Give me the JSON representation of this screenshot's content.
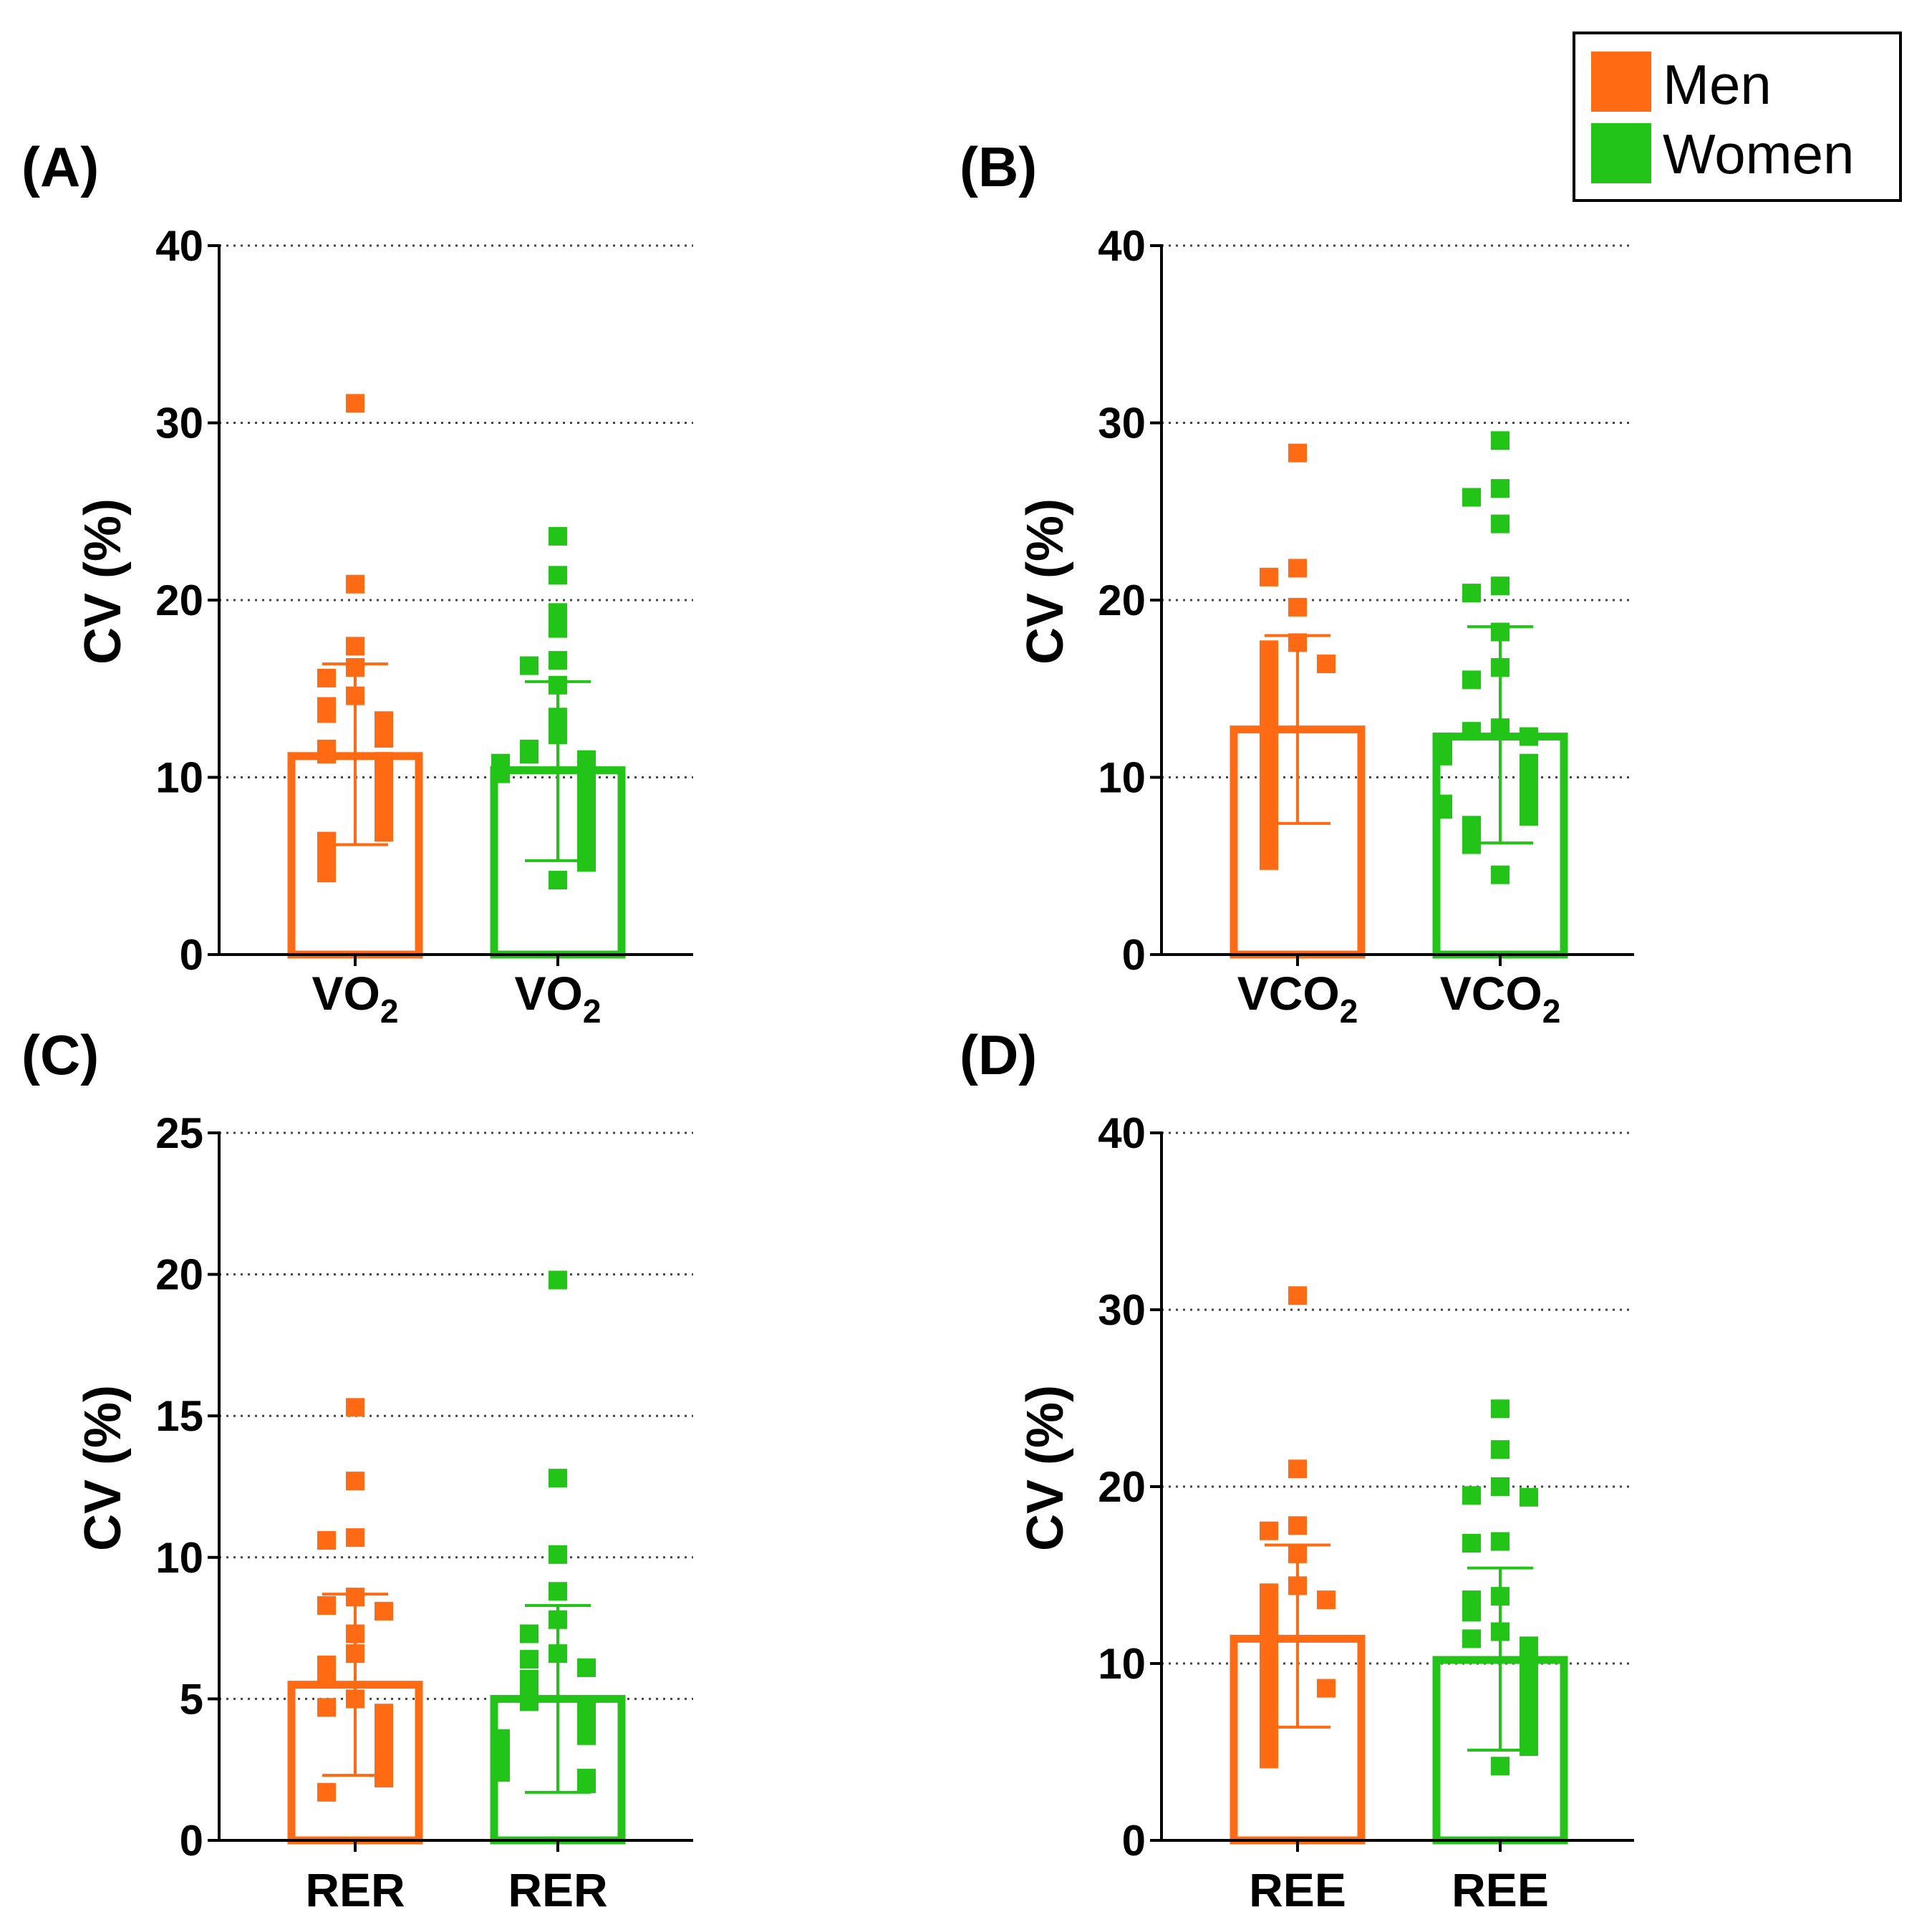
{
  "legend": {
    "items": [
      {
        "label": "Men",
        "color": "#FF6A13"
      },
      {
        "label": "Women",
        "color": "#22C417"
      }
    ]
  },
  "colors": {
    "men": "#FF6A13",
    "women": "#22C417",
    "axis": "#000000",
    "grid": "#444444"
  },
  "chart_data": [
    {
      "type": "bar",
      "panel_label": "(A)",
      "ylabel": "CV (%)",
      "ylim": [
        0,
        40
      ],
      "yticks": [
        "0",
        "10",
        "20",
        "30",
        "40"
      ],
      "ytick_values": [
        0,
        10,
        20,
        30,
        40
      ],
      "grid": "dotted horizontal",
      "categories": [
        {
          "base": "VO",
          "sub": "2",
          "series": "Men"
        },
        {
          "base": "VO",
          "sub": "2",
          "series": "Women"
        }
      ],
      "series": [
        {
          "name": "Men",
          "mean": 11.2,
          "sd_low": 6.2,
          "sd_high": 16.4,
          "points": [
            31.1,
            20.9,
            17.4,
            16.2,
            15.6,
            14.6,
            14.0,
            13.6,
            13.2,
            12.9,
            12.6,
            12.2,
            11.6,
            11.3,
            10.9,
            10.6,
            10.3,
            9.9,
            9.6,
            9.3,
            8.9,
            8.5,
            8.1,
            7.7,
            7.3,
            6.9,
            6.4,
            5.8,
            5.2,
            4.6
          ]
        },
        {
          "name": "Women",
          "mean": 10.4,
          "sd_low": 5.3,
          "sd_high": 15.4,
          "points": [
            23.6,
            21.4,
            19.3,
            18.4,
            16.6,
            16.3,
            15.2,
            13.4,
            12.4,
            11.6,
            11.3,
            11.0,
            10.8,
            10.5,
            10.2,
            9.9,
            9.6,
            9.3,
            9.0,
            8.7,
            8.4,
            8.1,
            7.8,
            7.5,
            7.2,
            6.8,
            6.4,
            6.0,
            5.7,
            5.2,
            4.2
          ]
        }
      ]
    },
    {
      "type": "bar",
      "panel_label": "(B)",
      "ylabel": "CV (%)",
      "ylim": [
        0,
        40
      ],
      "yticks": [
        "0",
        "10",
        "20",
        "30",
        "40"
      ],
      "ytick_values": [
        0,
        10,
        20,
        30,
        40
      ],
      "grid": "dotted horizontal",
      "categories": [
        {
          "base": "VCO",
          "sub": "2",
          "series": "Men"
        },
        {
          "base": "VCO",
          "sub": "2",
          "series": "Women"
        }
      ],
      "series": [
        {
          "name": "Men",
          "mean": 12.7,
          "sd_low": 7.4,
          "sd_high": 18.0,
          "points": [
            28.3,
            21.8,
            21.3,
            19.6,
            17.6,
            17.2,
            16.6,
            16.4,
            15.6,
            14.8,
            14.3,
            13.8,
            13.2,
            12.6,
            12.0,
            11.5,
            10.9,
            10.4,
            9.8,
            9.3,
            8.8,
            8.4,
            7.9,
            7.4,
            6.8,
            6.3,
            5.7,
            5.3
          ]
        },
        {
          "name": "Women",
          "mean": 12.3,
          "sd_low": 6.3,
          "sd_high": 18.5,
          "points": [
            29.0,
            26.3,
            25.8,
            24.3,
            20.8,
            20.4,
            18.2,
            16.2,
            15.5,
            12.8,
            12.6,
            12.3,
            12.0,
            11.8,
            11.5,
            11.2,
            10.8,
            10.5,
            10.2,
            9.9,
            9.6,
            9.3,
            9.0,
            8.7,
            8.5,
            8.2,
            7.8,
            7.3,
            6.8,
            6.2,
            4.5
          ]
        }
      ]
    },
    {
      "type": "bar",
      "panel_label": "(C)",
      "ylabel": "CV (%)",
      "ylim": [
        0,
        25
      ],
      "yticks": [
        "0",
        "5",
        "10",
        "15",
        "20",
        "25"
      ],
      "ytick_values": [
        0,
        5,
        10,
        15,
        20,
        25
      ],
      "grid": "dotted horizontal",
      "categories": [
        {
          "base": "RER",
          "sub": "",
          "series": "Men"
        },
        {
          "base": "RER",
          "sub": "",
          "series": "Women"
        }
      ],
      "series": [
        {
          "name": "Men",
          "mean": 5.5,
          "sd_low": 2.3,
          "sd_high": 8.7,
          "points": [
            15.3,
            12.7,
            10.7,
            10.6,
            8.6,
            8.3,
            8.1,
            7.3,
            6.6,
            6.2,
            5.7,
            5.0,
            4.7,
            4.5,
            4.2,
            4.0,
            3.8,
            3.6,
            3.4,
            3.2,
            3.0,
            2.8,
            2.6,
            2.4,
            2.2,
            1.7
          ]
        },
        {
          "name": "Women",
          "mean": 5.0,
          "sd_low": 1.7,
          "sd_high": 8.3,
          "points": [
            19.8,
            12.8,
            10.1,
            8.8,
            7.8,
            7.3,
            6.6,
            6.4,
            6.1,
            5.7,
            5.2,
            4.9,
            4.7,
            4.5,
            4.3,
            4.1,
            3.9,
            3.7,
            3.6,
            3.4,
            3.3,
            3.1,
            2.9,
            2.8,
            2.6,
            2.4,
            2.2,
            2.0
          ]
        }
      ]
    },
    {
      "type": "bar",
      "panel_label": "(D)",
      "ylabel": "CV (%)",
      "ylim": [
        0,
        40
      ],
      "yticks": [
        "0",
        "10",
        "20",
        "30",
        "40"
      ],
      "ytick_values": [
        0,
        10,
        20,
        30,
        40
      ],
      "grid": "dotted horizontal",
      "categories": [
        {
          "base": "REE",
          "sub": "",
          "series": "Men"
        },
        {
          "base": "REE",
          "sub": "",
          "series": "Women"
        }
      ],
      "series": [
        {
          "name": "Men",
          "mean": 11.4,
          "sd_low": 6.4,
          "sd_high": 16.7,
          "points": [
            30.8,
            21.0,
            17.8,
            17.5,
            16.2,
            14.4,
            14.0,
            13.6,
            13.1,
            12.7,
            12.2,
            11.7,
            11.2,
            10.8,
            10.3,
            9.9,
            9.4,
            9.0,
            8.6,
            8.1,
            7.7,
            7.2,
            6.7,
            6.2,
            5.7,
            5.2,
            4.6
          ]
        },
        {
          "name": "Women",
          "mean": 10.2,
          "sd_low": 5.1,
          "sd_high": 15.4,
          "points": [
            24.4,
            22.1,
            20.0,
            19.5,
            19.4,
            16.9,
            16.8,
            13.8,
            13.6,
            12.9,
            11.8,
            11.4,
            11.0,
            10.7,
            10.4,
            10.1,
            9.8,
            9.5,
            9.2,
            8.9,
            8.6,
            8.3,
            8.0,
            7.6,
            7.3,
            6.9,
            6.5,
            6.1,
            5.7,
            5.3,
            4.2
          ]
        }
      ]
    }
  ]
}
